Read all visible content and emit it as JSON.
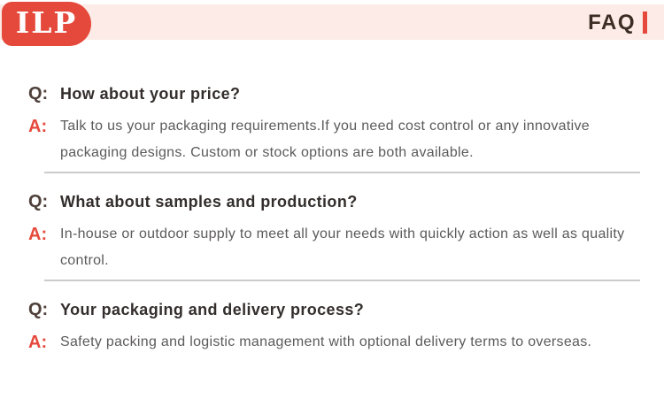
{
  "header": {
    "logo_text": "ILP",
    "faq_title": "FAQ"
  },
  "faq": {
    "q_label": "Q:",
    "a_label": "A:",
    "items": [
      {
        "question": "How about your price?",
        "answer": "Talk to us your packaging requirements.If you need cost control or any innovative packaging designs. Custom or stock options are both available."
      },
      {
        "question": "What about samples and production?",
        "answer": "In-house or outdoor supply to meet all your needs with quickly action as well as quality control."
      },
      {
        "question": "Your packaging and delivery process?",
        "answer": "Safety packing and logistic management with optional delivery terms to overseas."
      }
    ]
  },
  "colors": {
    "brand_red": "#e5493b",
    "header_pink": "#fcebe7",
    "faq_title_brown": "#3b2d24",
    "question_text": "#332e2c",
    "answer_gray": "#5c5a5a",
    "divider_gray": "#cbcbcb"
  }
}
